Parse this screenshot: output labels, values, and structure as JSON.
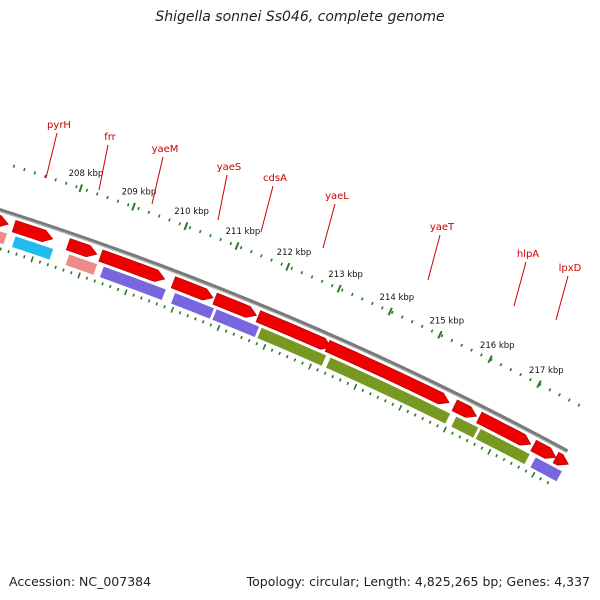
{
  "title": "Shigella sonnei Ss046, complete genome",
  "footer": {
    "accession": "Accession: NC_007384",
    "topology": "Topology: circular; Length: 4,825,265 bp; Genes: 4,337"
  },
  "colors": {
    "cds_forward": "#ee0000",
    "label": "#cc0000",
    "tick": "#2a7a2a",
    "backbone": "#7a7a7a"
  },
  "gene_labels": [
    "pyrH",
    "frr",
    "yaeM",
    "yaeS",
    "cdsA",
    "yaeL",
    "yaeT",
    "hlpA",
    "lpxD"
  ],
  "kbp_ticks": [
    "208 kbp",
    "209 kbp",
    "210 kbp",
    "211 kbp",
    "212 kbp",
    "213 kbp",
    "214 kbp",
    "215 kbp",
    "216 kbp",
    "217 kbp"
  ]
}
